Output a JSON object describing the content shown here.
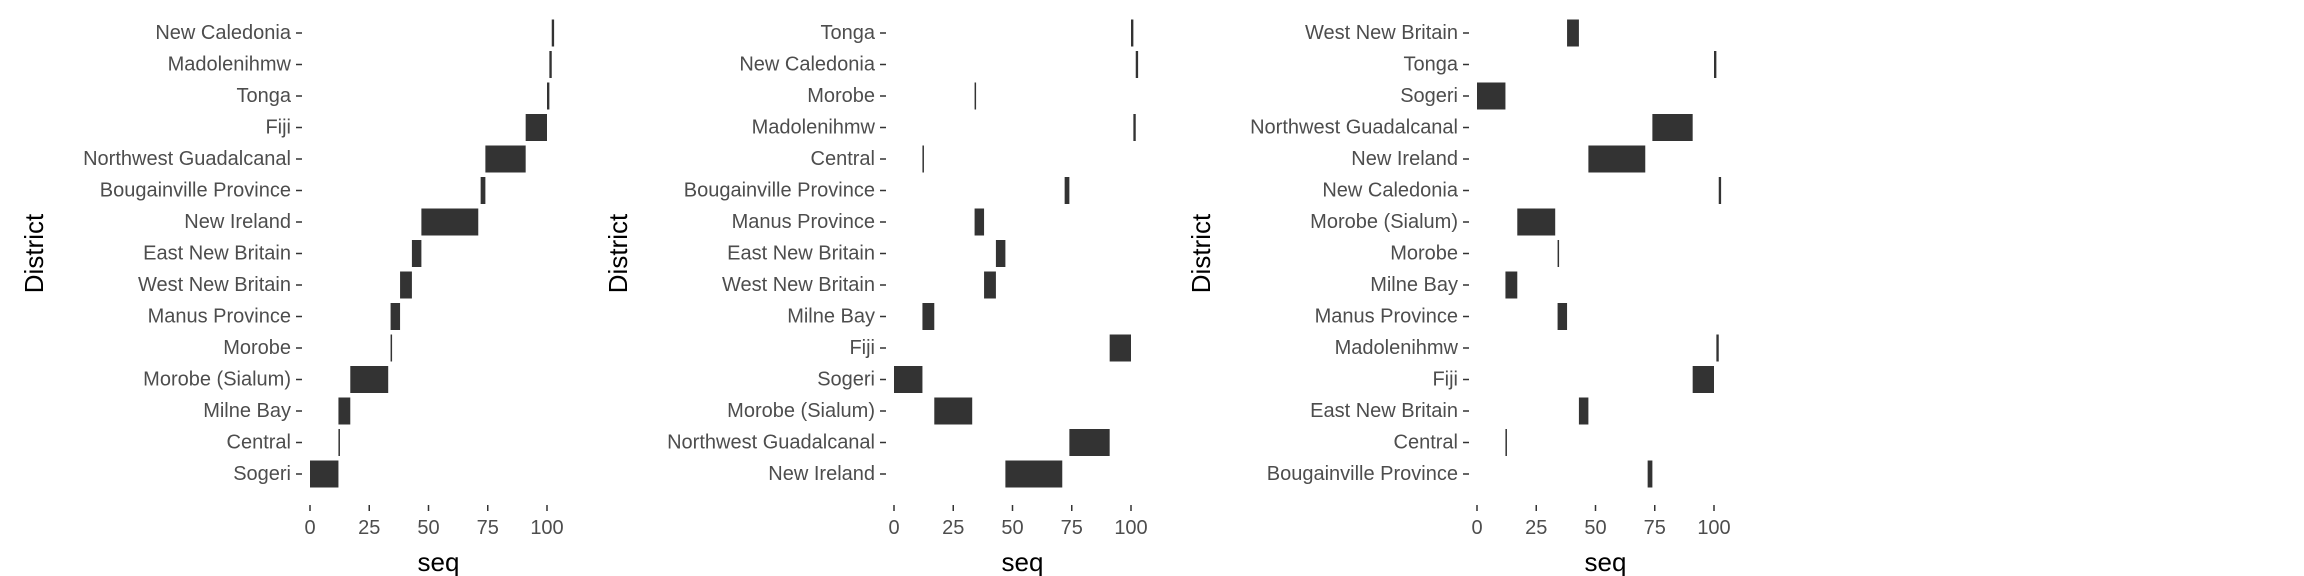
{
  "chart_data": [
    {
      "type": "bar",
      "orientation": "horizontal-range",
      "xlabel": "seq",
      "ylabel": "District",
      "xlim": [
        -5,
        108
      ],
      "xticks": [
        0,
        25,
        50,
        75,
        100
      ],
      "grid": false,
      "legend": "none",
      "categories": [
        "New Caledonia",
        "Madolenihmw",
        "Tonga",
        "Fiji",
        "Northwest Guadalcanal",
        "Bougainville Province",
        "New Ireland",
        "East New Britain",
        "West New Britain",
        "Manus Province",
        "Morobe",
        "Morobe (Sialum)",
        "Milne Bay",
        "Central",
        "Sogeri"
      ],
      "ranges": [
        [
          102,
          103
        ],
        [
          101,
          102
        ],
        [
          100,
          101
        ],
        [
          91,
          100
        ],
        [
          74,
          91
        ],
        [
          72,
          74
        ],
        [
          47,
          71
        ],
        [
          43,
          47
        ],
        [
          38,
          43
        ],
        [
          34,
          38
        ],
        [
          34,
          34.5
        ],
        [
          17,
          33
        ],
        [
          12,
          17
        ],
        [
          12,
          12.6
        ],
        [
          0,
          12
        ]
      ]
    },
    {
      "type": "bar",
      "orientation": "horizontal-range",
      "xlabel": "seq",
      "ylabel": "District",
      "xlim": [
        -5,
        108
      ],
      "xticks": [
        0,
        25,
        50,
        75,
        100
      ],
      "grid": false,
      "legend": "none",
      "categories": [
        "Tonga",
        "New Caledonia",
        "Morobe",
        "Madolenihmw",
        "Central",
        "Bougainville Province",
        "Manus Province",
        "East New Britain",
        "West New Britain",
        "Milne Bay",
        "Fiji",
        "Sogeri",
        "Morobe (Sialum)",
        "Northwest Guadalcanal",
        "New Ireland"
      ],
      "ranges": [
        [
          100,
          101
        ],
        [
          102,
          103
        ],
        [
          34,
          34.5
        ],
        [
          101,
          102
        ],
        [
          12,
          12.6
        ],
        [
          72,
          74
        ],
        [
          34,
          38
        ],
        [
          43,
          47
        ],
        [
          38,
          43
        ],
        [
          12,
          17
        ],
        [
          91,
          100
        ],
        [
          0,
          12
        ],
        [
          17,
          33
        ],
        [
          74,
          91
        ],
        [
          47,
          71
        ]
      ]
    },
    {
      "type": "bar",
      "orientation": "horizontal-range",
      "xlabel": "seq",
      "ylabel": "District",
      "xlim": [
        -5,
        108
      ],
      "xticks": [
        0,
        25,
        50,
        75,
        100
      ],
      "grid": false,
      "legend": "none",
      "categories": [
        "West New Britain",
        "Tonga",
        "Sogeri",
        "Northwest Guadalcanal",
        "New Ireland",
        "New Caledonia",
        "Morobe (Sialum)",
        "Morobe",
        "Milne Bay",
        "Manus Province",
        "Madolenihmw",
        "Fiji",
        "East New Britain",
        "Central",
        "Bougainville Province"
      ],
      "ranges": [
        [
          38,
          43
        ],
        [
          100,
          101
        ],
        [
          0,
          12
        ],
        [
          74,
          91
        ],
        [
          47,
          71
        ],
        [
          102,
          103
        ],
        [
          17,
          33
        ],
        [
          34,
          34.5
        ],
        [
          12,
          17
        ],
        [
          34,
          38
        ],
        [
          101,
          102
        ],
        [
          91,
          100
        ],
        [
          43,
          47
        ],
        [
          12,
          12.6
        ],
        [
          72,
          74
        ]
      ]
    }
  ],
  "colors": {
    "bar": "#333333",
    "tick_label": "#4d4d4d",
    "axis_title": "#000000"
  }
}
